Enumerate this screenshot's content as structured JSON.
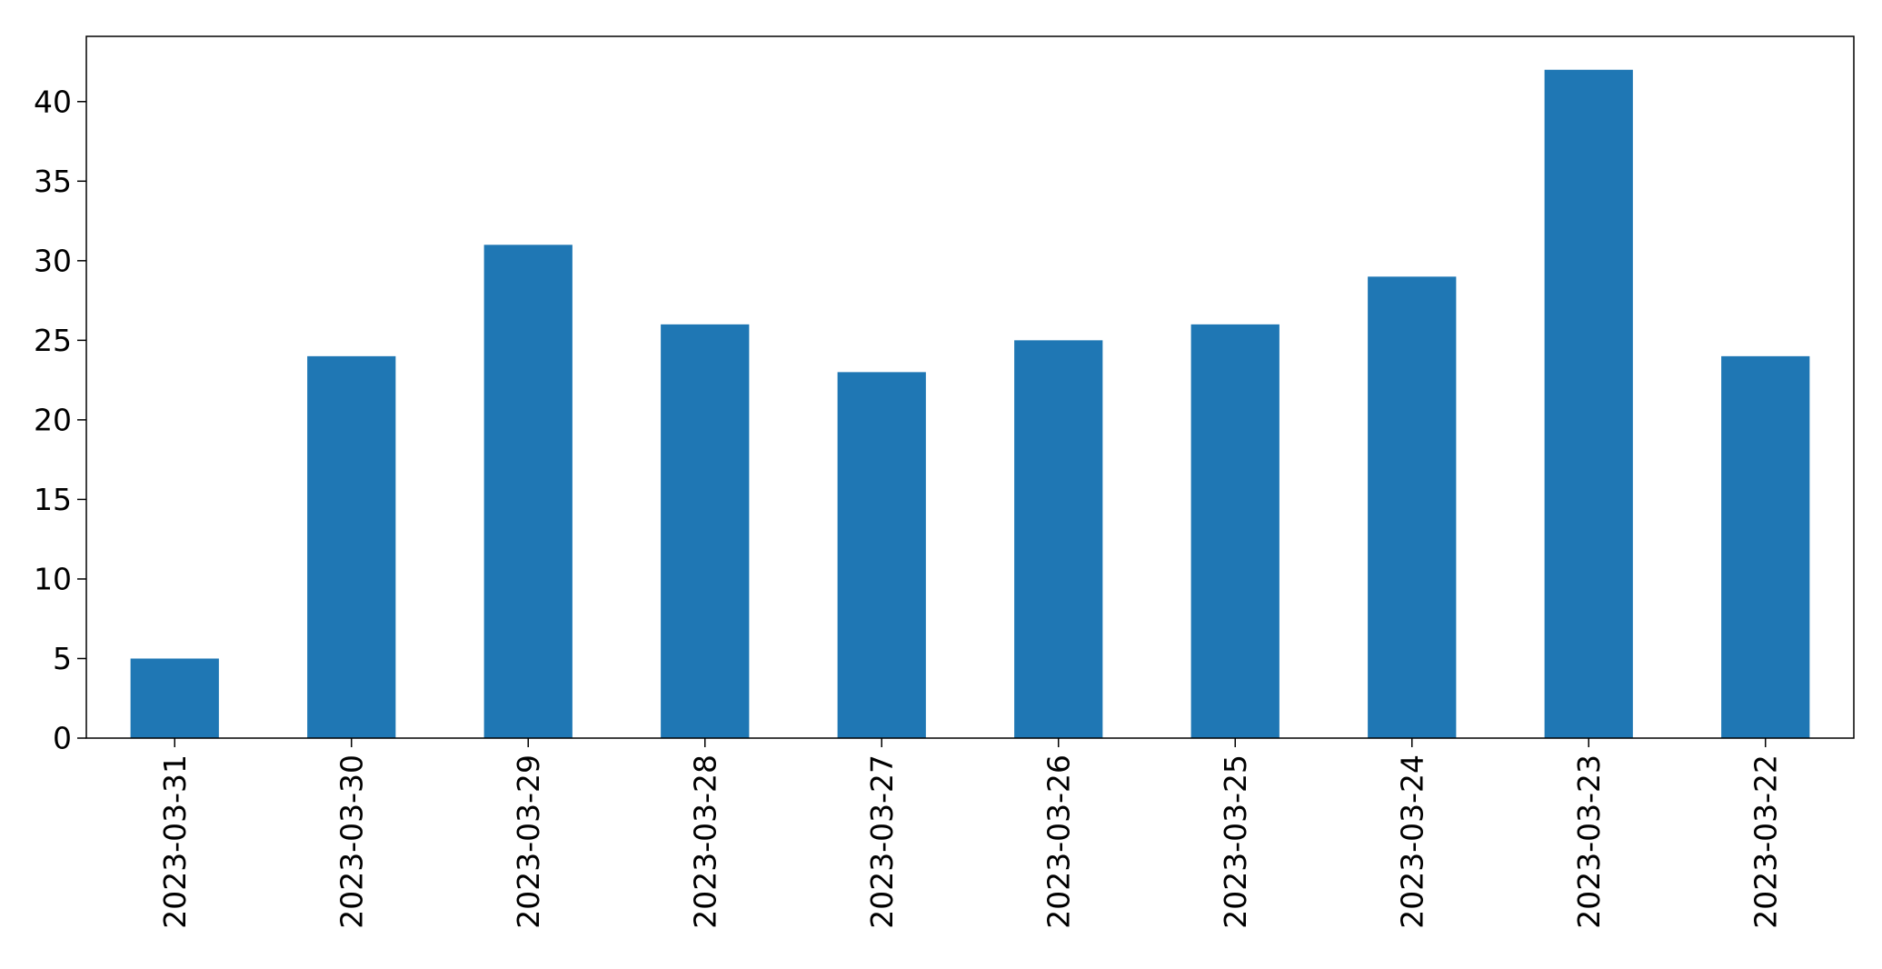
{
  "chart_data": {
    "type": "bar",
    "title": "",
    "xlabel": "",
    "ylabel": "",
    "categories": [
      "2023-03-31",
      "2023-03-30",
      "2023-03-29",
      "2023-03-28",
      "2023-03-27",
      "2023-03-26",
      "2023-03-25",
      "2023-03-24",
      "2023-03-23",
      "2023-03-22"
    ],
    "values": [
      5,
      24,
      31,
      26,
      23,
      25,
      26,
      29,
      42,
      24
    ],
    "ylim": [
      0,
      44.1
    ],
    "yticks": [
      0,
      5,
      10,
      15,
      20,
      25,
      30,
      35,
      40
    ],
    "grid": false,
    "legend": "none",
    "bar_color": "#1f77b4",
    "axis_color": "#000000"
  }
}
